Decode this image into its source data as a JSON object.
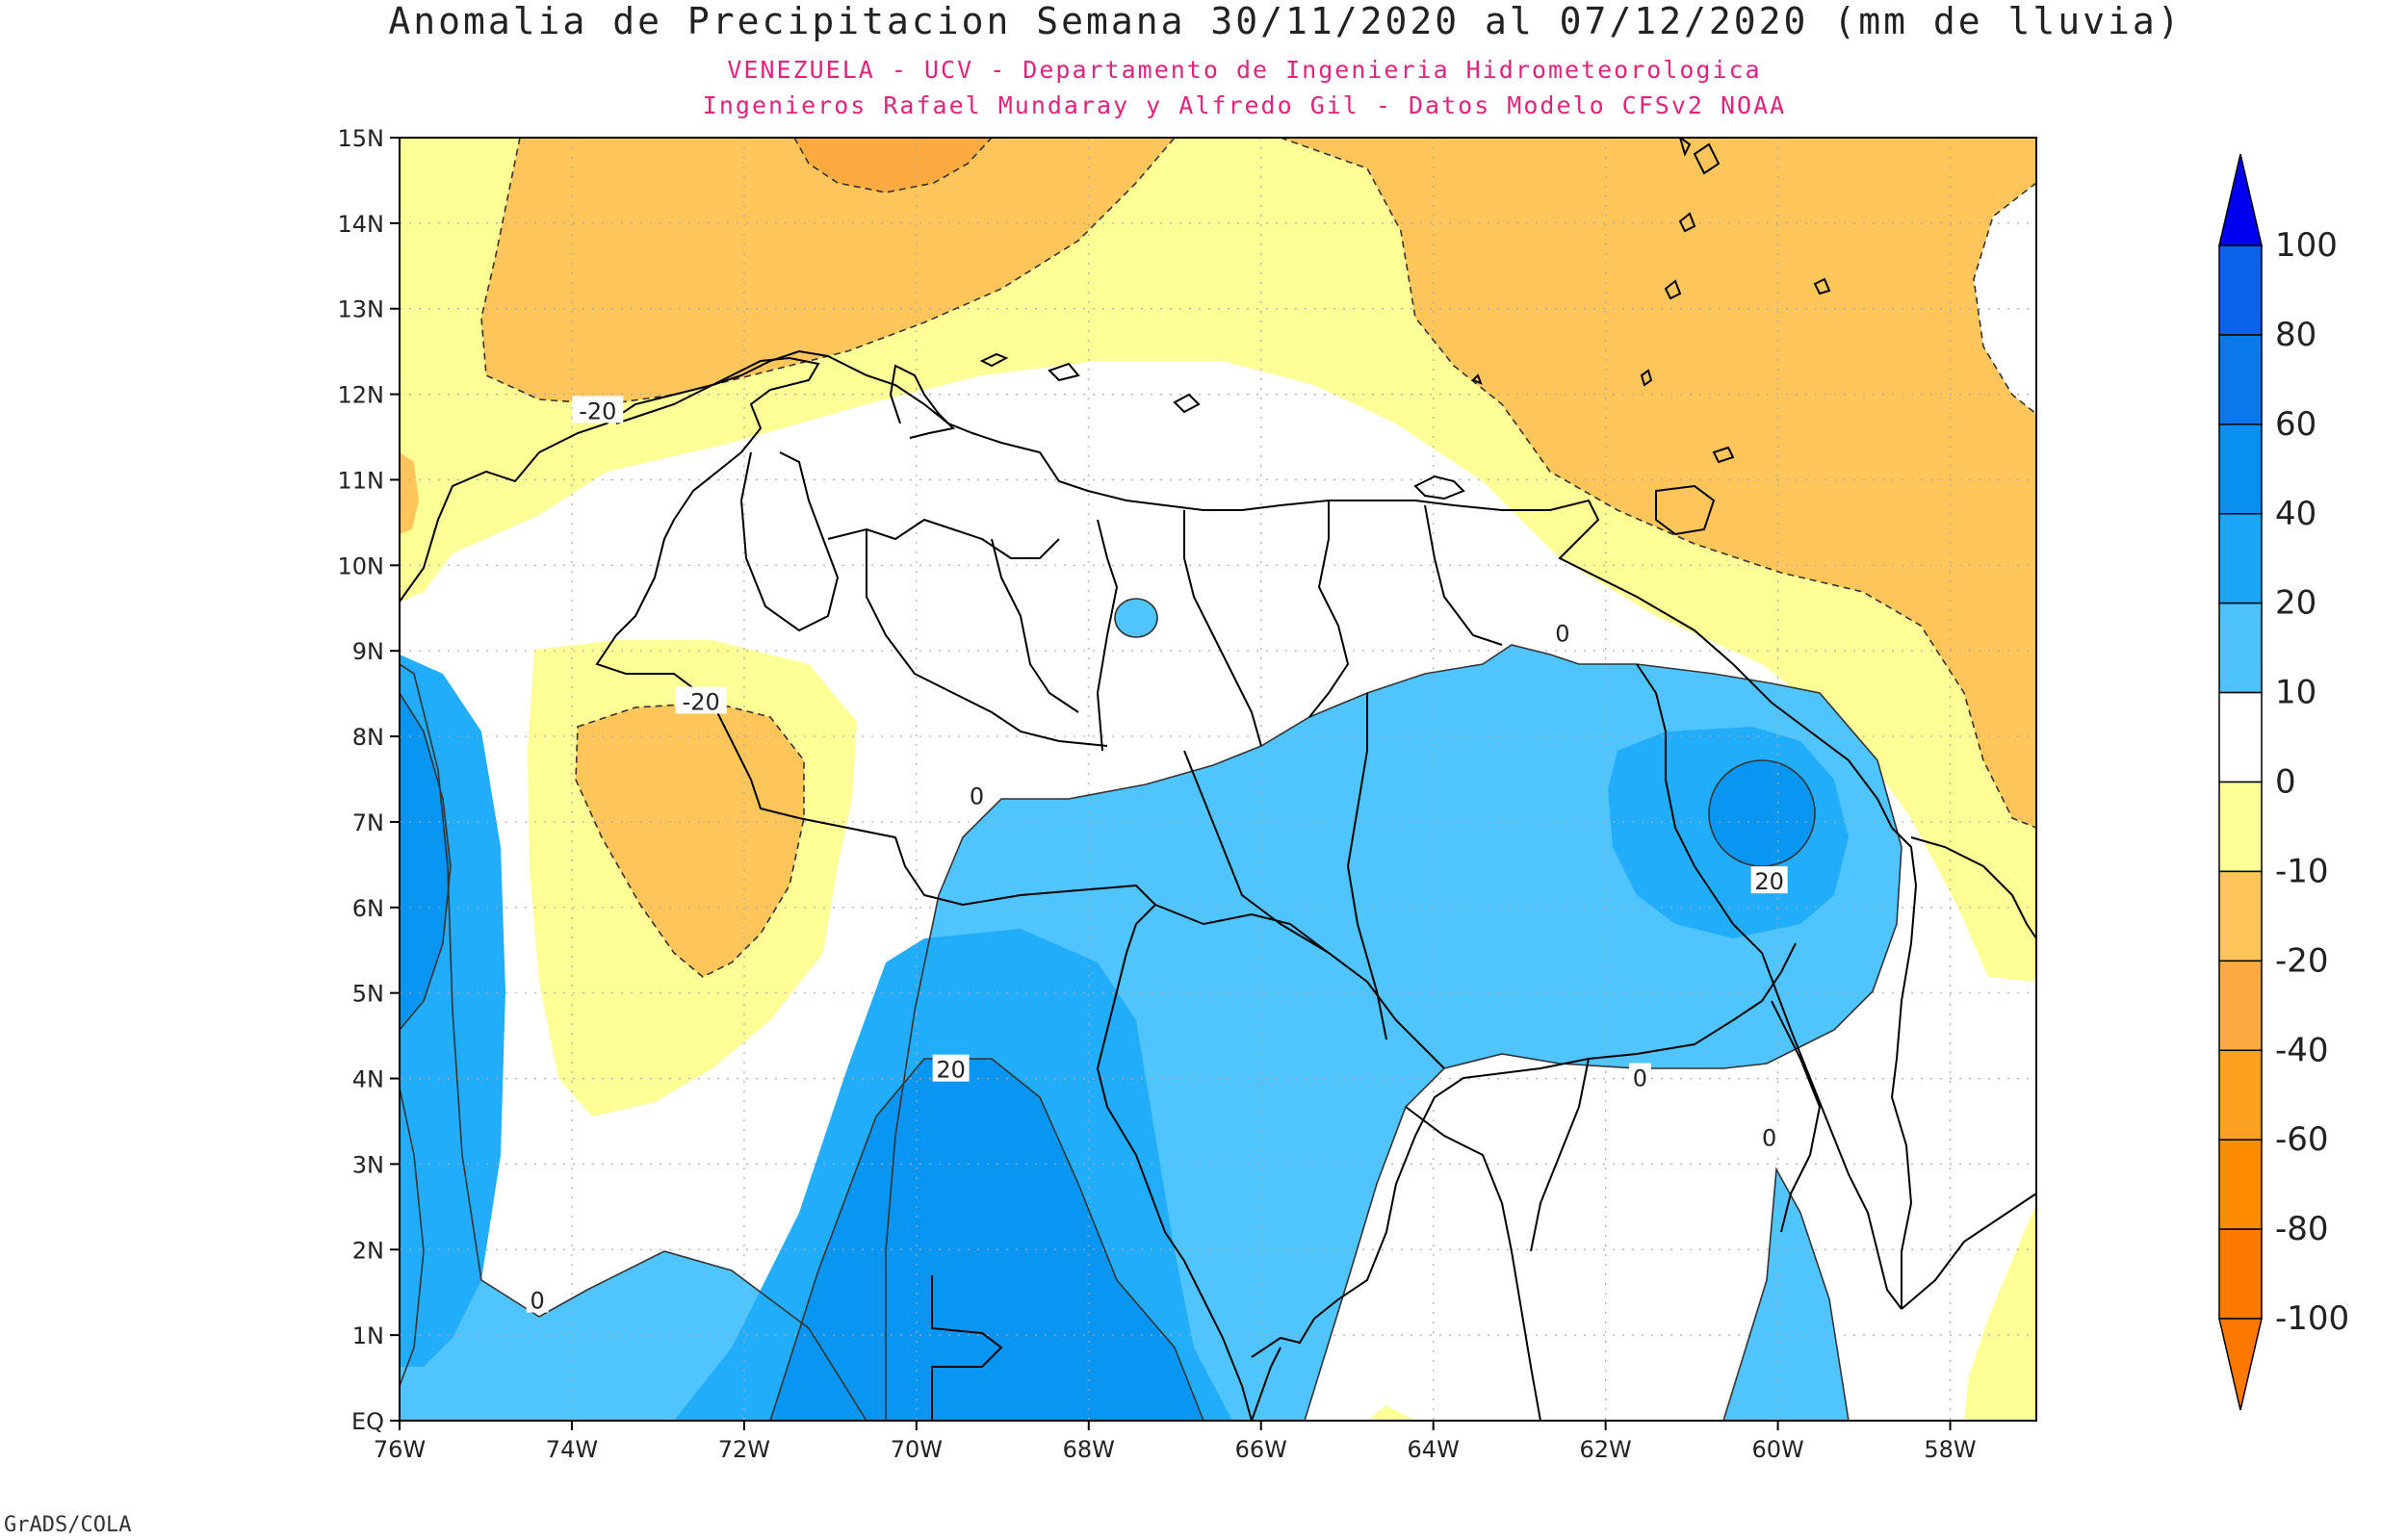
{
  "title": "Anomalia de Precipitacion Semana 30/11/2020 al 07/12/2020 (mm de lluvia)",
  "subtitle_1": "VENEZUELA - UCV - Departamento de Ingenieria Hidrometeorologica",
  "subtitle_2": "Ingenieros Rafael Mundaray y Alfredo Gil - Datos Modelo CFSv2 NOAA",
  "credit": "GrADS/COLA",
  "map": {
    "lon_range": [
      -76,
      -57
    ],
    "lat_range": [
      0,
      15
    ],
    "x_ticks": [
      {
        "value": -76,
        "label": "76W"
      },
      {
        "value": -74,
        "label": "74W"
      },
      {
        "value": -72,
        "label": "72W"
      },
      {
        "value": -70,
        "label": "70W"
      },
      {
        "value": -68,
        "label": "68W"
      },
      {
        "value": -66,
        "label": "66W"
      },
      {
        "value": -64,
        "label": "64W"
      },
      {
        "value": -62,
        "label": "62W"
      },
      {
        "value": -60,
        "label": "60W"
      },
      {
        "value": -58,
        "label": "58W"
      }
    ],
    "y_ticks": [
      {
        "value": 0,
        "label": "EQ"
      },
      {
        "value": 1,
        "label": "1N"
      },
      {
        "value": 2,
        "label": "2N"
      },
      {
        "value": 3,
        "label": "3N"
      },
      {
        "value": 4,
        "label": "4N"
      },
      {
        "value": 5,
        "label": "5N"
      },
      {
        "value": 6,
        "label": "6N"
      },
      {
        "value": 7,
        "label": "7N"
      },
      {
        "value": 8,
        "label": "8N"
      },
      {
        "value": 9,
        "label": "9N"
      },
      {
        "value": 10,
        "label": "10N"
      },
      {
        "value": 11,
        "label": "11N"
      },
      {
        "value": 12,
        "label": "12N"
      },
      {
        "value": 13,
        "label": "13N"
      },
      {
        "value": 14,
        "label": "14N"
      },
      {
        "value": 15,
        "label": "15N"
      }
    ],
    "contour_labels": [
      {
        "text": "-20",
        "lon": -73.7,
        "lat": 11.8
      },
      {
        "text": "-20",
        "lon": -72.5,
        "lat": 8.4
      },
      {
        "text": "0",
        "lon": -69.3,
        "lat": 7.3
      },
      {
        "text": "0",
        "lon": -62.5,
        "lat": 9.2
      },
      {
        "text": "20",
        "lon": -60.1,
        "lat": 6.3
      },
      {
        "text": "20",
        "lon": -69.6,
        "lat": 4.1
      },
      {
        "text": "0",
        "lon": -61.6,
        "lat": 4.0
      },
      {
        "text": "0",
        "lon": -60.1,
        "lat": 3.3
      },
      {
        "text": "0",
        "lon": -74.4,
        "lat": 1.4
      }
    ],
    "fill_colors": {
      "neg40": "#fbab3f",
      "neg20": "#fec65a",
      "neg10": "#fefe96",
      "pos0": "#50c5fd",
      "pos10": "#22adfa",
      "pos20": "#0896f2"
    }
  },
  "colorbar": {
    "labels": [
      "100",
      "80",
      "60",
      "40",
      "20",
      "10",
      "0",
      "-10",
      "-20",
      "-40",
      "-60",
      "-80",
      "-100"
    ],
    "colors": [
      "#0000f0",
      "#0b62ea",
      "#0a78ed",
      "#0890f0",
      "#1aa6f6",
      "#4dc2fb",
      "#ffffff",
      "#fefe96",
      "#fec65a",
      "#fbab3f",
      "#fca120",
      "#fe8c00",
      "#ff7800"
    ]
  }
}
